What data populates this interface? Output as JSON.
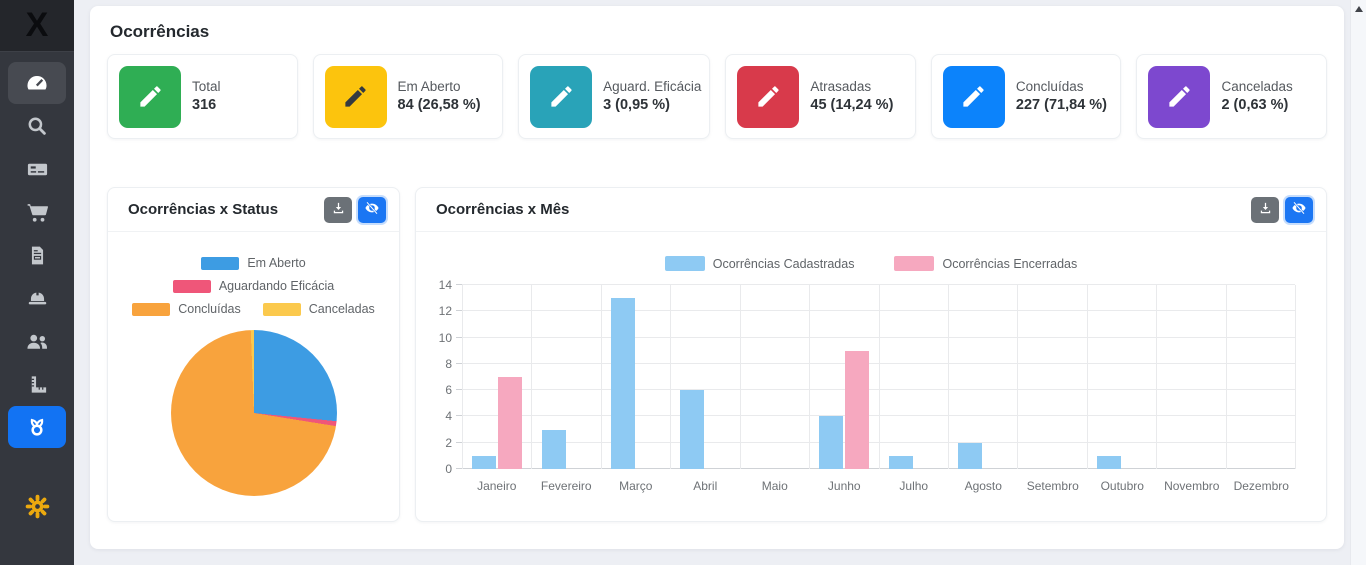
{
  "page": {
    "title": "Ocorrências"
  },
  "sidebar": {
    "logo_text": "X",
    "icons": [
      "dashboard-gauge",
      "search",
      "money-check",
      "shopping-cart",
      "file-invoice",
      "hard-hat",
      "users",
      "ruler",
      "award",
      "settings-gear"
    ],
    "active_item": "dashboard-gauge",
    "highlighted_item": "award",
    "active_blue": "#1273f3",
    "gear_color": "#eca90e"
  },
  "stats": {
    "cards": [
      {
        "label": "Total",
        "value": "316",
        "tile_color": "#2fae54",
        "pencil_color": "#ffffff"
      },
      {
        "label": "Em Aberto",
        "value": "84 (26,58 %)",
        "tile_color": "#fcc40d",
        "pencil_color": "#343a40"
      },
      {
        "label": "Aguard. Eficácia",
        "value": "3 (0,95 %)",
        "tile_color": "#29a3b8",
        "pencil_color": "#ffffff"
      },
      {
        "label": "Atrasadas",
        "value": "45 (14,24 %)",
        "tile_color": "#d83a4b",
        "pencil_color": "#ffffff"
      },
      {
        "label": "Concluídas",
        "value": "227 (71,84 %)",
        "tile_color": "#0c83fb",
        "pencil_color": "#ffffff"
      },
      {
        "label": "Canceladas",
        "value": "2 (0,63 %)",
        "tile_color": "#7d48cf",
        "pencil_color": "#ffffff"
      }
    ]
  },
  "charts": {
    "status_card_title": "Ocorrências x Status",
    "month_card_title": "Ocorrências x Mês"
  },
  "chart_data": [
    {
      "type": "pie",
      "title": "Ocorrências x Status",
      "labels": [
        "Em Aberto",
        "Aguardando Eficácia",
        "Concluídas",
        "Canceladas"
      ],
      "values": [
        84,
        3,
        227,
        2
      ],
      "percentages": [
        26.58,
        0.95,
        71.84,
        0.63
      ],
      "colors": [
        "#3d9ce3",
        "#ef5679",
        "#f8a33d",
        "#fbc94d"
      ],
      "legend_position": "top",
      "legend_rows": [
        [
          0
        ],
        [
          1
        ],
        [
          2,
          3
        ]
      ]
    },
    {
      "type": "bar",
      "title": "Ocorrências x Mês",
      "categories": [
        "Janeiro",
        "Fevereiro",
        "Março",
        "Abril",
        "Maio",
        "Junho",
        "Julho",
        "Agosto",
        "Setembro",
        "Outubro",
        "Novembro",
        "Dezembro"
      ],
      "series": [
        {
          "name": "Ocorrências Cadastradas",
          "color": "#8ecaf3",
          "values": [
            1,
            3,
            13,
            6,
            0,
            4,
            1,
            2,
            0,
            1,
            0,
            0
          ]
        },
        {
          "name": "Ocorrências Encerradas",
          "color": "#f6a8bf",
          "values": [
            7,
            0,
            0,
            0,
            0,
            9,
            0,
            0,
            0,
            0,
            0,
            0
          ]
        }
      ],
      "ylim": [
        0,
        14
      ],
      "yticks": [
        0,
        2,
        4,
        6,
        8,
        10,
        12,
        14
      ],
      "grid": true,
      "legend_position": "top"
    }
  ]
}
